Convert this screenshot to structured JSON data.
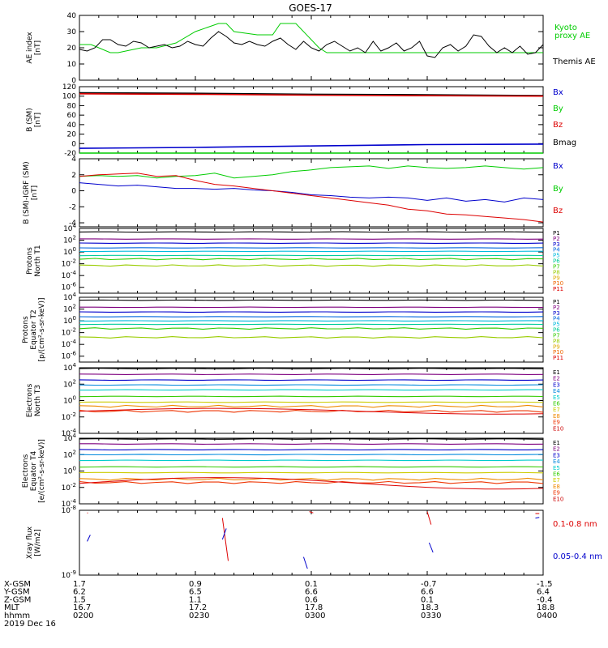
{
  "title": "GOES-17",
  "date": "2019 Dec 16",
  "colors": {
    "black": "#000000",
    "red": "#dd0000",
    "green": "#00cc00",
    "blue": "#0000cc",
    "ramp11": [
      "#000000",
      "#7f007f",
      "#0000cc",
      "#0066dd",
      "#00bbdd",
      "#00cc99",
      "#33cc00",
      "#99cc00",
      "#ddaa00",
      "#ee6600",
      "#dd0000"
    ],
    "ramp10": [
      "#000000",
      "#7f007f",
      "#0000cc",
      "#0088dd",
      "#00cccc",
      "#33cc00",
      "#cccc00",
      "#ee8800",
      "#ee3300",
      "#cc0000"
    ]
  },
  "chart_data": [
    {
      "type": "line",
      "panel": "ae",
      "ylabel": [
        "AE index",
        "[nT]"
      ],
      "ylim": [
        0,
        40
      ],
      "yticks": [
        "0",
        "10",
        "20",
        "30",
        "40"
      ],
      "legend": [
        {
          "label": "Kyoto",
          "color": "#00cc00"
        },
        {
          "label": "proxy AE",
          "color": "#00cc00"
        },
        {
          "label": "Themis AE",
          "color": "#000000"
        }
      ],
      "series": [
        {
          "name": "Kyoto proxy AE",
          "color": "#00cc00",
          "x": [
            0,
            3,
            8,
            10,
            16,
            20,
            25,
            30,
            36,
            38,
            40,
            46,
            50,
            52,
            56,
            62,
            64,
            66,
            68,
            72,
            74,
            76,
            80,
            84,
            90,
            100,
            110,
            120
          ],
          "y": [
            22,
            22,
            17,
            17,
            20,
            20,
            23,
            30,
            35,
            35,
            30,
            28,
            28,
            35,
            35,
            20,
            17,
            17,
            17,
            17,
            17,
            17,
            17,
            17,
            17,
            17,
            17,
            17
          ]
        },
        {
          "name": "Themis AE",
          "color": "#000000",
          "x": [
            0,
            2,
            4,
            6,
            8,
            10,
            12,
            14,
            16,
            18,
            20,
            22,
            24,
            26,
            28,
            30,
            32,
            34,
            36,
            38,
            40,
            42,
            44,
            46,
            48,
            50,
            52,
            54,
            56,
            58,
            60,
            62,
            64,
            66,
            68,
            70,
            72,
            74,
            76,
            78,
            80,
            82,
            84,
            86,
            88,
            90,
            92,
            94,
            96,
            98,
            100,
            102,
            104,
            106,
            108,
            110,
            112,
            114,
            116,
            118,
            120
          ],
          "y": [
            19,
            18,
            20,
            25,
            25,
            22,
            21,
            24,
            23,
            20,
            21,
            22,
            20,
            21,
            24,
            22,
            21,
            26,
            30,
            27,
            23,
            22,
            24,
            22,
            21,
            24,
            26,
            22,
            19,
            24,
            20,
            18,
            22,
            24,
            21,
            18,
            20,
            17,
            24,
            18,
            20,
            23,
            18,
            20,
            24,
            15,
            14,
            20,
            22,
            18,
            21,
            28,
            27,
            21,
            17,
            20,
            17,
            21,
            16,
            17,
            22
          ]
        }
      ]
    },
    {
      "type": "line",
      "panel": "b_sm",
      "ylabel": [
        "B (SM)",
        "[nT]"
      ],
      "ylim": [
        -20,
        120
      ],
      "yticks": [
        "-20",
        "0",
        "20",
        "40",
        "60",
        "80",
        "100",
        "120"
      ],
      "legend": [
        {
          "label": "Bx",
          "color": "#0000cc"
        },
        {
          "label": "By",
          "color": "#00cc00"
        },
        {
          "label": "Bz",
          "color": "#dd0000"
        },
        {
          "label": "Bmag",
          "color": "#000000"
        }
      ],
      "series": [
        {
          "name": "Bmag",
          "color": "#000000",
          "x": [
            0,
            30,
            60,
            90,
            120
          ],
          "y": [
            107,
            106,
            104,
            103,
            101
          ]
        },
        {
          "name": "Bz",
          "color": "#dd0000",
          "x": [
            0,
            30,
            60,
            90,
            120
          ],
          "y": [
            105,
            104,
            102,
            101,
            100
          ]
        },
        {
          "name": "Bx",
          "color": "#0000cc",
          "x": [
            0,
            30,
            60,
            90,
            120
          ],
          "y": [
            -10,
            -8,
            -5,
            -2,
            -1
          ]
        },
        {
          "name": "By",
          "color": "#00cc00",
          "x": [
            0,
            30,
            60,
            90,
            120
          ],
          "y": [
            -20,
            -20,
            -20,
            -20,
            -20
          ]
        }
      ]
    },
    {
      "type": "line",
      "panel": "b_minus_igrf",
      "ylabel": [
        "B (SM)-IGRF (SM)",
        "[nT]"
      ],
      "ylim": [
        -4.5,
        4
      ],
      "yticks": [
        "-4",
        "-2",
        "0",
        "2",
        "4"
      ],
      "legend": [
        {
          "label": "Bx",
          "color": "#0000cc"
        },
        {
          "label": "By",
          "color": "#00cc00"
        },
        {
          "label": "Bz",
          "color": "#dd0000"
        }
      ],
      "series": [
        {
          "name": "By",
          "color": "#00cc00",
          "x": [
            0,
            5,
            10,
            15,
            20,
            25,
            30,
            35,
            40,
            45,
            50,
            55,
            60,
            65,
            70,
            75,
            80,
            85,
            90,
            95,
            100,
            105,
            110,
            115,
            120
          ],
          "y": [
            1.8,
            1.9,
            1.8,
            1.9,
            1.6,
            1.8,
            1.9,
            2.2,
            1.6,
            1.8,
            2.0,
            2.4,
            2.6,
            2.9,
            3.0,
            3.1,
            2.8,
            3.1,
            2.9,
            2.8,
            2.9,
            3.1,
            2.9,
            2.7,
            2.9
          ]
        },
        {
          "name": "Bx",
          "color": "#0000cc",
          "x": [
            0,
            5,
            10,
            15,
            20,
            25,
            30,
            35,
            40,
            45,
            50,
            55,
            60,
            65,
            70,
            75,
            80,
            85,
            90,
            95,
            100,
            105,
            110,
            115,
            120
          ],
          "y": [
            1.0,
            0.8,
            0.6,
            0.7,
            0.5,
            0.3,
            0.3,
            0.2,
            0.3,
            0.1,
            0.0,
            -0.2,
            -0.5,
            -0.6,
            -0.8,
            -0.9,
            -0.8,
            -0.9,
            -1.2,
            -0.9,
            -1.3,
            -1.1,
            -1.4,
            -0.9,
            -1.1
          ]
        },
        {
          "name": "Bz",
          "color": "#dd0000",
          "x": [
            0,
            5,
            10,
            15,
            20,
            25,
            30,
            35,
            40,
            45,
            50,
            55,
            60,
            65,
            70,
            75,
            80,
            85,
            90,
            95,
            100,
            105,
            110,
            115,
            120
          ],
          "y": [
            1.8,
            2.0,
            2.1,
            2.2,
            1.8,
            1.9,
            1.3,
            0.8,
            0.6,
            0.3,
            0.0,
            -0.3,
            -0.6,
            -0.9,
            -1.2,
            -1.5,
            -1.8,
            -2.3,
            -2.5,
            -2.9,
            -3.0,
            -3.2,
            -3.4,
            -3.6,
            -3.9
          ]
        }
      ]
    },
    {
      "type": "line",
      "panel": "protons_t1",
      "ylabel": [
        "Protons",
        "North T1"
      ],
      "yscale": "log",
      "ylim_exp": [
        -7,
        4
      ],
      "yticks": [
        "10^4",
        "10^2",
        "10^0",
        "10^-2",
        "10^-4",
        "10^-6"
      ],
      "legend": [
        "P1",
        "P2",
        "P3",
        "P4",
        "P5",
        "P6",
        "P7",
        "P8",
        "P9",
        "P10",
        "P11"
      ],
      "levels_exp": [
        3.4,
        2.2,
        1.5,
        0.7,
        0.1,
        -0.6,
        -1.2,
        -2.3
      ]
    },
    {
      "type": "line",
      "panel": "protons_t2",
      "ylabel": [
        "Protons",
        "Equator T2",
        "[p/(cm²-s-sr-keV)]"
      ],
      "yscale": "log",
      "ylim_exp": [
        -7,
        4
      ],
      "yticks": [
        "10^4",
        "10^2",
        "10^0",
        "10^-2",
        "10^-4",
        "10^-6"
      ],
      "legend": [
        "P1",
        "P2",
        "P3",
        "P4",
        "P5",
        "P6",
        "P7",
        "P8",
        "P9",
        "P10",
        "P11"
      ],
      "levels_exp": [
        3.5,
        2.3,
        1.5,
        0.7,
        0.0,
        -0.6,
        -1.3,
        -2.8
      ]
    },
    {
      "type": "line",
      "panel": "electrons_t3",
      "ylabel": [
        "Electrons",
        "North T3"
      ],
      "yscale": "log",
      "ylim_exp": [
        -4,
        4
      ],
      "yticks": [
        "10^4",
        "10^2",
        "10^0",
        "10^-2",
        "10^-4"
      ],
      "legend": [
        "E1",
        "E2",
        "E3",
        "E4",
        "E5",
        "E6",
        "E7",
        "E8",
        "E9",
        "E10"
      ],
      "levels_exp": [
        3.9,
        3.2,
        2.5,
        1.9,
        1.3,
        0.5,
        -0.2,
        -0.7,
        -1.3
      ]
    },
    {
      "type": "line",
      "panel": "electrons_t4",
      "ylabel": [
        "Electrons",
        "Equator T4",
        "[e/(cm²-s-sr-keV)]"
      ],
      "yscale": "log",
      "ylim_exp": [
        -4,
        4
      ],
      "yticks": [
        "10^4",
        "10^2",
        "10^0",
        "10^-2",
        "10^-4"
      ],
      "legend": [
        "E1",
        "E2",
        "E3",
        "E4",
        "E5",
        "E6",
        "E7",
        "E8",
        "E9",
        "E10"
      ],
      "levels_exp": [
        3.9,
        3.3,
        2.6,
        2.0,
        1.3,
        0.5,
        -0.2,
        -1.0,
        -1.4
      ]
    },
    {
      "type": "scatter",
      "panel": "xray",
      "ylabel": [
        "Xray flux",
        "[W/m2]"
      ],
      "yscale": "log",
      "ylim_exp": [
        -9,
        -8
      ],
      "yticks": [
        "10^-8",
        "10^-9"
      ],
      "legend": [
        {
          "label": "0.1-0.8 nm",
          "color": "#dd0000"
        },
        {
          "label": "0.05-0.4 nm",
          "color": "#0000cc"
        }
      ]
    }
  ],
  "xaxis": {
    "range_min": [
      0,
      120
    ],
    "tick_minutes": [
      0,
      30,
      60,
      90,
      120
    ],
    "rows": [
      {
        "label": "X-GSM",
        "values": [
          "1.7",
          "0.9",
          "0.1",
          "-0.7",
          "-1.5"
        ]
      },
      {
        "label": "Y-GSM",
        "values": [
          "6.2",
          "6.5",
          "6.6",
          "6.6",
          "6.4"
        ]
      },
      {
        "label": "Z-GSM",
        "values": [
          "1.5",
          "1.1",
          "0.6",
          "0.1",
          "-0.4"
        ]
      },
      {
        "label": "MLT",
        "values": [
          "16.7",
          "17.2",
          "17.8",
          "18.3",
          "18.8"
        ]
      },
      {
        "label": "hhmm",
        "values": [
          "0200",
          "0230",
          "0300",
          "0330",
          "0400"
        ]
      }
    ]
  }
}
